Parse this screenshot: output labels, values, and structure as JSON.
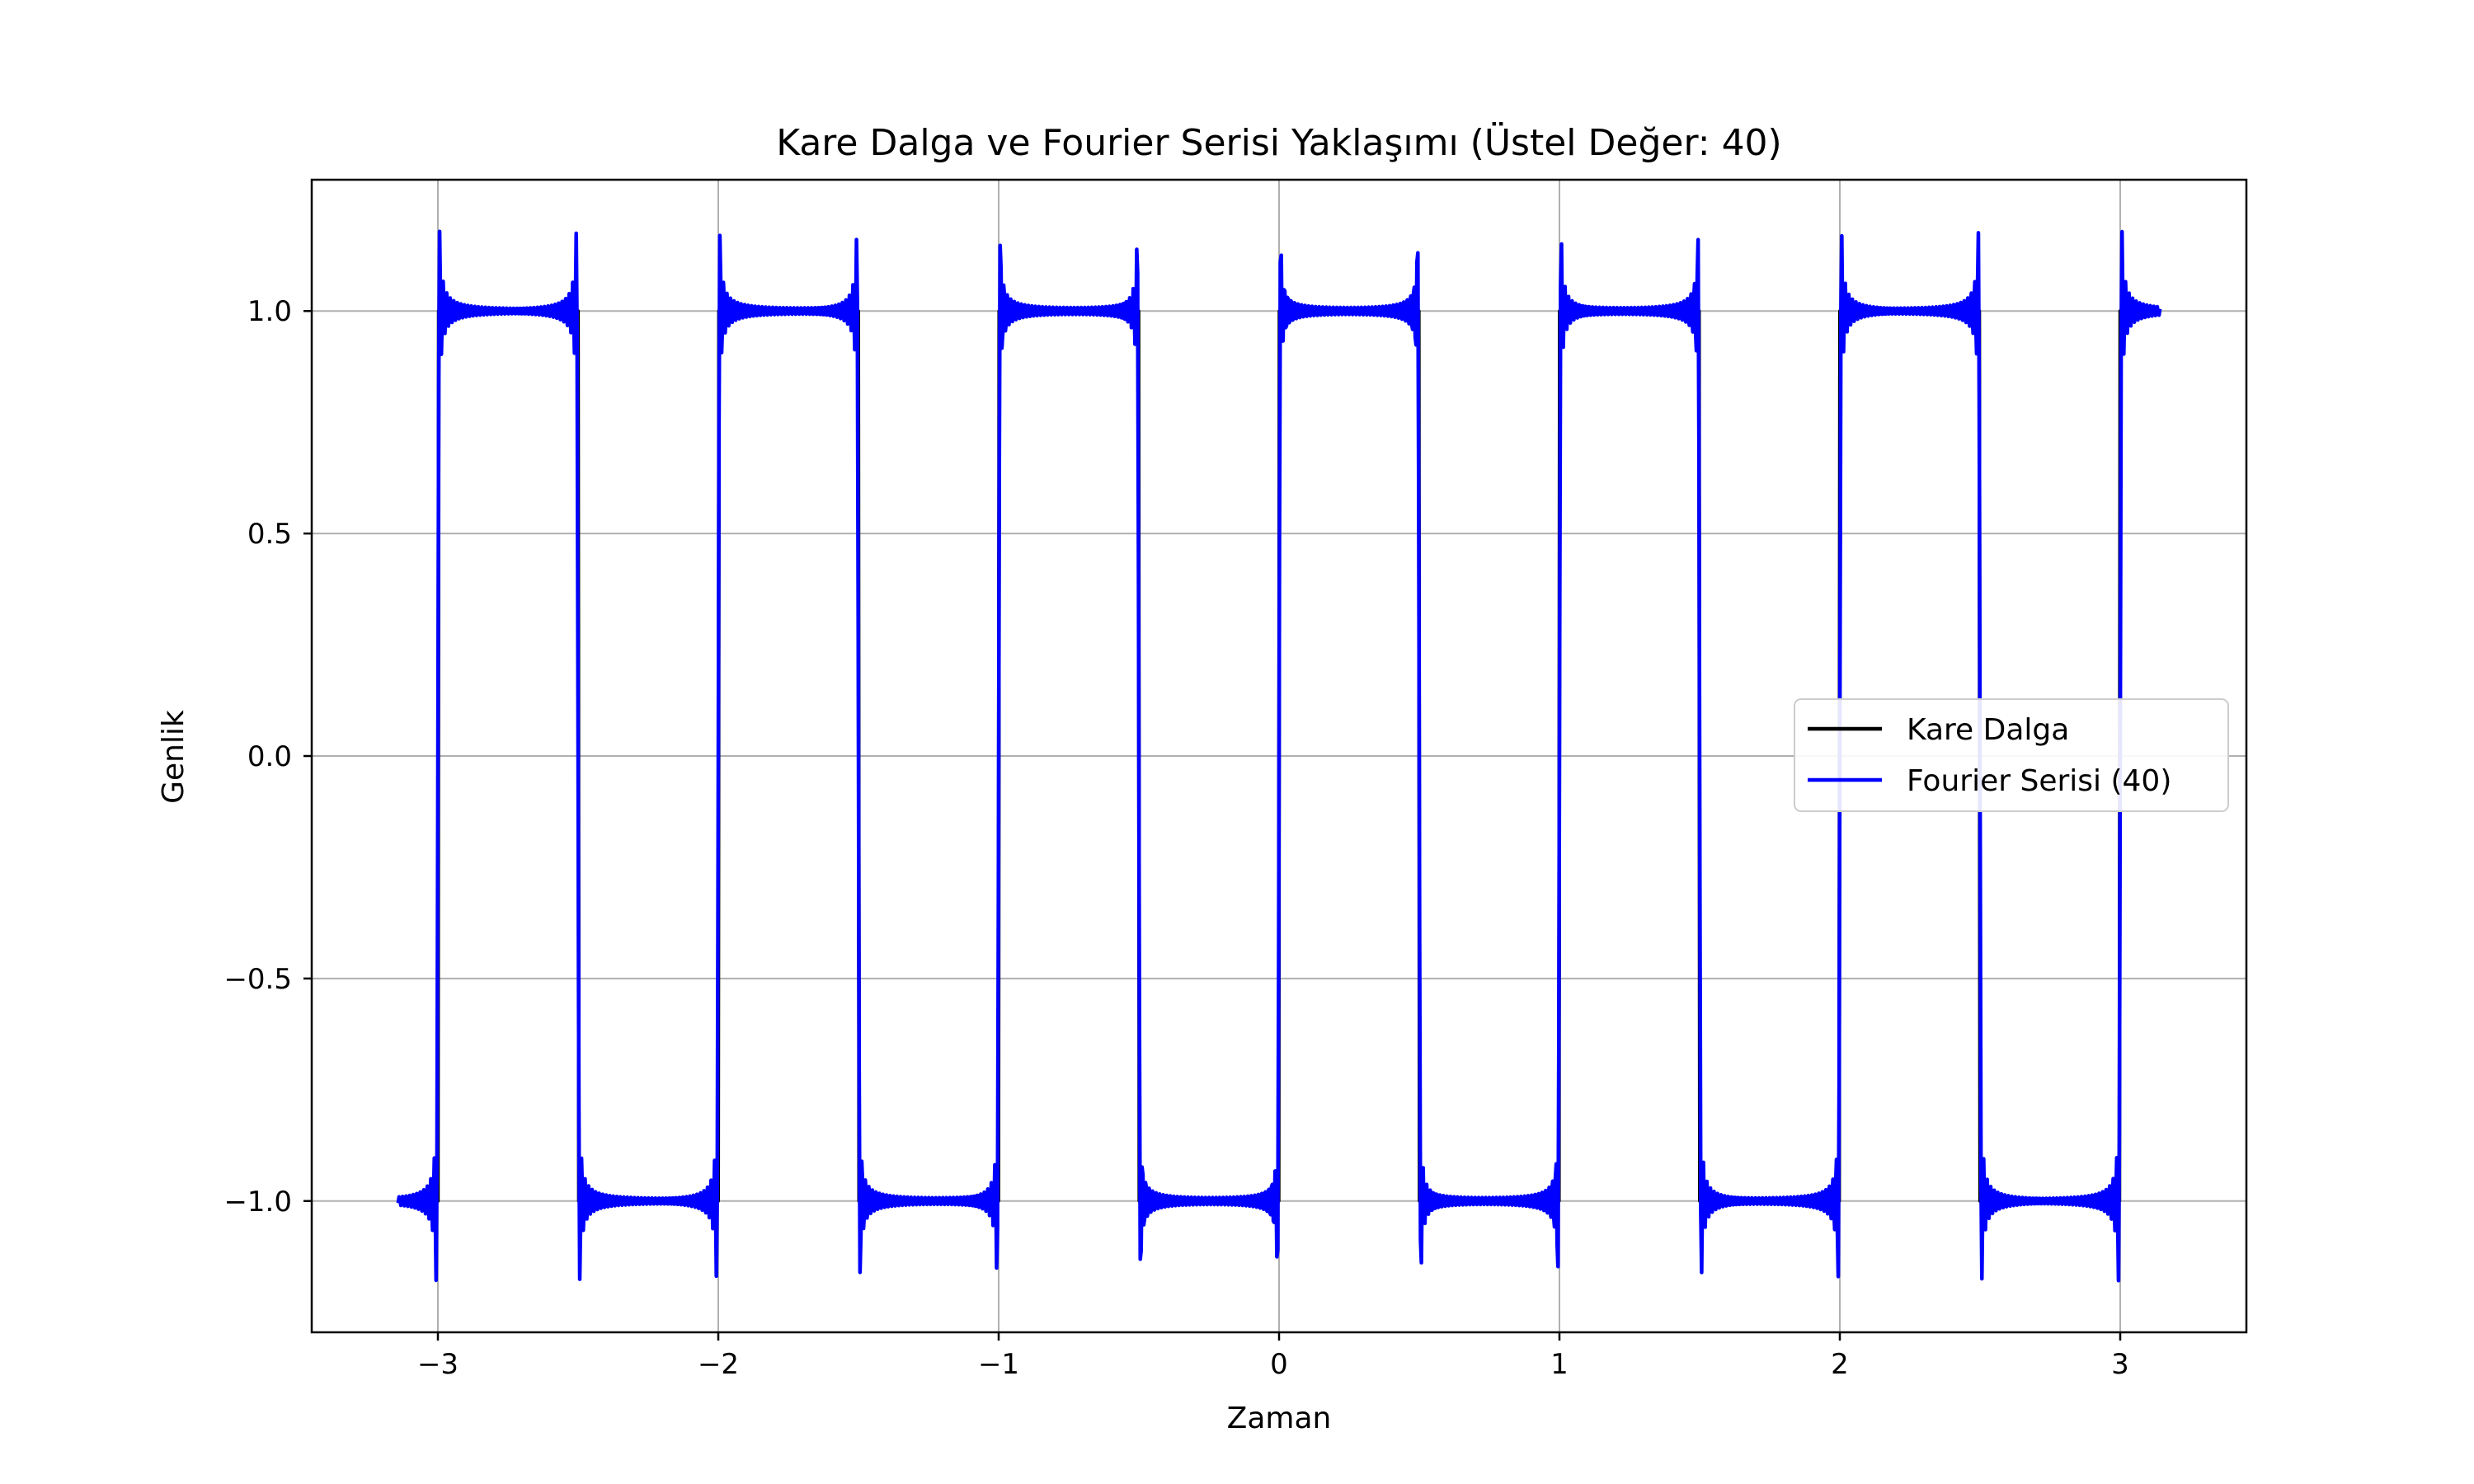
{
  "chart_data": {
    "type": "line",
    "title": "Kare Dalga ve Fourier Serisi Yaklaşımı (Üstel Değer: 40)",
    "xlabel": "Zaman",
    "ylabel": "Genlik",
    "xlim": [
      -3.45,
      3.45
    ],
    "ylim": [
      -1.295,
      1.295
    ],
    "xticks": [
      -3,
      -2,
      -1,
      0,
      1,
      2,
      3
    ],
    "xtick_labels": [
      "−3",
      "−2",
      "−1",
      "0",
      "1",
      "2",
      "3"
    ],
    "yticks": [
      -1.0,
      -0.5,
      0.0,
      0.5,
      1.0
    ],
    "ytick_labels": [
      "−1.0",
      "−0.5",
      "0.0",
      "0.5",
      "1.0"
    ],
    "grid": true,
    "legend_position": "center-right",
    "x_range": [
      -3.14159,
      3.14159
    ],
    "series": [
      {
        "name": "Kare Dalga",
        "color": "#000000",
        "function": "square wave, period 1, value 1 for t mod 1 in [0, 0.5), value -1 otherwise"
      },
      {
        "name": "Fourier Serisi (40)",
        "color": "#0000ff",
        "function": "(4/π) Σ sin(2π(2k-1)t)/(2k-1), k = 1…40"
      }
    ]
  }
}
